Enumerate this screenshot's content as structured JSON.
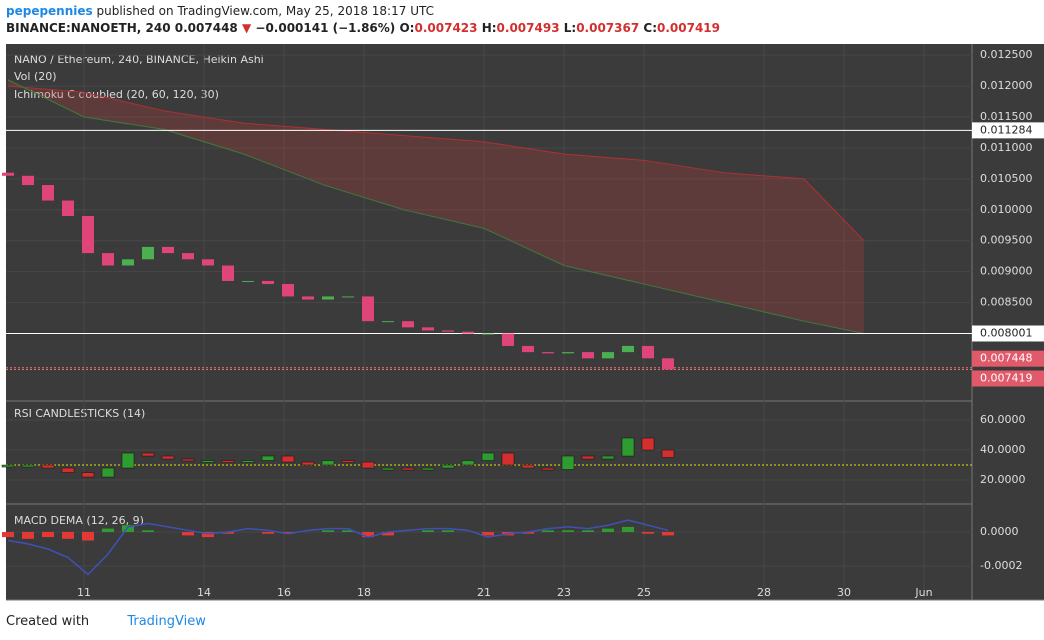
{
  "header": {
    "author": "pepepennies",
    "published": "published on TradingView.com, May 25, 2018 18:17 UTC",
    "symbol": "BINANCE:NANOETH, 240",
    "last": "0.007448",
    "arrow": "▼",
    "change": "−0.000141 (−1.86%)",
    "o_label": "O:",
    "o": "0.007423",
    "h_label": "H:",
    "h": "0.007493",
    "l_label": "L:",
    "l": "0.007367",
    "c_label": "C:",
    "c": "0.007419"
  },
  "footer": {
    "created": "Created with",
    "brand": "TradingView"
  },
  "chart_data": [
    {
      "type": "candlestick",
      "title": "NANO / Ethereum, 240, BINANCE, Heikin Ashi",
      "volume_title": "Vol (20)",
      "cloud_title": "Ichimoku C doubled (20, 60, 120, 30)",
      "x": [
        9.1,
        9.6,
        10.1,
        10.6,
        11.1,
        11.6,
        12.1,
        12.6,
        13.1,
        13.6,
        14.1,
        14.6,
        15.1,
        15.6,
        16.1,
        16.6,
        17.1,
        17.6,
        18.1,
        18.6,
        19.1,
        19.6,
        20.1,
        20.6,
        21.1,
        21.6,
        22.1,
        22.6,
        23.1,
        23.6,
        24.1,
        24.6,
        25.1,
        25.6
      ],
      "open": [
        0.0106,
        0.01055,
        0.0104,
        0.01015,
        0.0099,
        0.0093,
        0.0091,
        0.0092,
        0.0094,
        0.0093,
        0.0092,
        0.0091,
        0.00885,
        0.00885,
        0.0088,
        0.0086,
        0.00855,
        0.0086,
        0.0086,
        0.0082,
        0.0082,
        0.0081,
        0.00805,
        0.00803,
        0.008,
        0.008,
        0.0078,
        0.0077,
        0.00768,
        0.0077,
        0.0076,
        0.0077,
        0.0078,
        0.0076
      ],
      "close": [
        0.01055,
        0.0104,
        0.01015,
        0.0099,
        0.0093,
        0.0091,
        0.0092,
        0.0094,
        0.0093,
        0.0092,
        0.0091,
        0.00885,
        0.00885,
        0.0088,
        0.0086,
        0.00855,
        0.0086,
        0.0086,
        0.0082,
        0.0082,
        0.0081,
        0.00805,
        0.00803,
        0.008,
        0.008,
        0.0078,
        0.0077,
        0.00768,
        0.0077,
        0.0076,
        0.0077,
        0.0078,
        0.0076,
        0.007419
      ],
      "up_color": "#4caf50",
      "down_color": "#e0457a",
      "cloud_x": [
        9.1,
        11,
        13,
        15,
        17,
        19,
        21,
        23,
        25,
        27,
        29,
        30.5
      ],
      "cloud_upper": [
        0.012,
        0.0119,
        0.0116,
        0.0114,
        0.0113,
        0.0112,
        0.0111,
        0.0109,
        0.0108,
        0.0106,
        0.0105,
        0.0095
      ],
      "cloud_lower": [
        0.0121,
        0.0115,
        0.0113,
        0.0109,
        0.0104,
        0.01,
        0.0097,
        0.0091,
        0.0088,
        0.0085,
        0.0082,
        0.008
      ],
      "levels": [
        0.011284,
        0.008001
      ],
      "current_price": 0.007448,
      "xlim": [
        9.05,
        33.2
      ],
      "xticks": [
        11,
        14,
        16,
        18,
        21,
        23,
        25,
        28,
        30,
        {
          "value": 32,
          "label": "Jun"
        }
      ],
      "ylim": [
        0.006926,
        0.01268
      ],
      "yticks": [
        {
          "value": 0.0125,
          "label": "0.012500"
        },
        {
          "value": 0.012,
          "label": "0.012000"
        },
        {
          "value": 0.0115,
          "label": "0.011500"
        },
        {
          "value": 0.011,
          "label": "0.011000"
        },
        {
          "value": 0.0105,
          "label": "0.010500"
        },
        {
          "value": 0.01,
          "label": "0.010000"
        },
        {
          "value": 0.0095,
          "label": "0.009500"
        },
        {
          "value": 0.009,
          "label": "0.009000"
        },
        {
          "value": 0.0085,
          "label": "0.008500"
        }
      ]
    },
    {
      "type": "rsi",
      "title": "RSI CANDLESTICKS (14)",
      "x": [
        9.1,
        9.6,
        10.1,
        10.6,
        11.1,
        11.6,
        12.1,
        12.6,
        13.1,
        13.6,
        14.1,
        14.6,
        15.1,
        15.6,
        16.1,
        16.6,
        17.1,
        17.6,
        18.1,
        18.6,
        19.1,
        19.6,
        20.1,
        20.6,
        21.1,
        21.6,
        22.1,
        22.6,
        23.1,
        23.6,
        24.1,
        24.6,
        25.1,
        25.6
      ],
      "values": [
        30,
        30,
        28,
        25,
        22,
        28,
        38,
        36,
        34,
        33,
        33,
        32,
        33,
        36,
        32,
        30,
        33,
        32,
        28,
        28,
        27,
        28,
        30,
        33,
        38,
        30,
        28,
        27,
        36,
        34,
        36,
        48,
        40,
        35
      ],
      "level": 30,
      "xlim": [
        9.05,
        33.2
      ],
      "ylim": [
        4.7,
        72
      ],
      "yticks": [
        {
          "value": 60,
          "label": "60.0000"
        },
        {
          "value": 40,
          "label": "40.0000"
        },
        {
          "value": 20,
          "label": "20.0000"
        }
      ]
    },
    {
      "type": "macd",
      "title": "MACD DEMA (12, 26, 9)",
      "x": [
        9.1,
        9.6,
        10.1,
        10.6,
        11.1,
        11.6,
        12.1,
        12.6,
        13.1,
        13.6,
        14.1,
        14.6,
        15.1,
        15.6,
        16.1,
        16.6,
        17.1,
        17.6,
        18.1,
        18.6,
        19.1,
        19.6,
        20.1,
        20.6,
        21.1,
        21.6,
        22.1,
        22.6,
        23.1,
        23.6,
        24.1,
        24.6,
        25.1,
        25.6
      ],
      "histogram": [
        -3e-05,
        -4e-05,
        -3e-05,
        -4e-05,
        -5e-05,
        2e-05,
        4e-05,
        1e-05,
        0,
        -2e-05,
        -3e-05,
        -1e-05,
        0,
        -1e-05,
        -1e-05,
        0,
        1e-05,
        1e-05,
        -3e-05,
        -2e-05,
        0,
        1e-05,
        1e-05,
        0,
        -2e-05,
        -2e-05,
        -1e-05,
        1e-05,
        1e-05,
        1e-05,
        2e-05,
        3e-05,
        -1e-05,
        -2e-05
      ],
      "line": [
        -5e-05,
        -7e-05,
        -0.0001,
        -0.00015,
        -0.00025,
        -0.00013,
        3e-05,
        5e-05,
        3e-05,
        1e-05,
        -1e-05,
        0,
        2e-05,
        1e-05,
        -1e-05,
        1e-05,
        2e-05,
        2e-05,
        -3e-05,
        0,
        1e-05,
        2e-05,
        2e-05,
        1e-05,
        -3e-05,
        -1e-05,
        0,
        2e-05,
        3e-05,
        2e-05,
        4e-05,
        7e-05,
        4e-05,
        1e-05
      ],
      "xlim": [
        9.05,
        33.2
      ],
      "ylim": [
        -0.0004,
        0.000159
      ],
      "yticks": [
        {
          "value": 0,
          "label": "0.0000"
        },
        {
          "value": -0.0002,
          "label": "-0.0002"
        }
      ]
    }
  ]
}
